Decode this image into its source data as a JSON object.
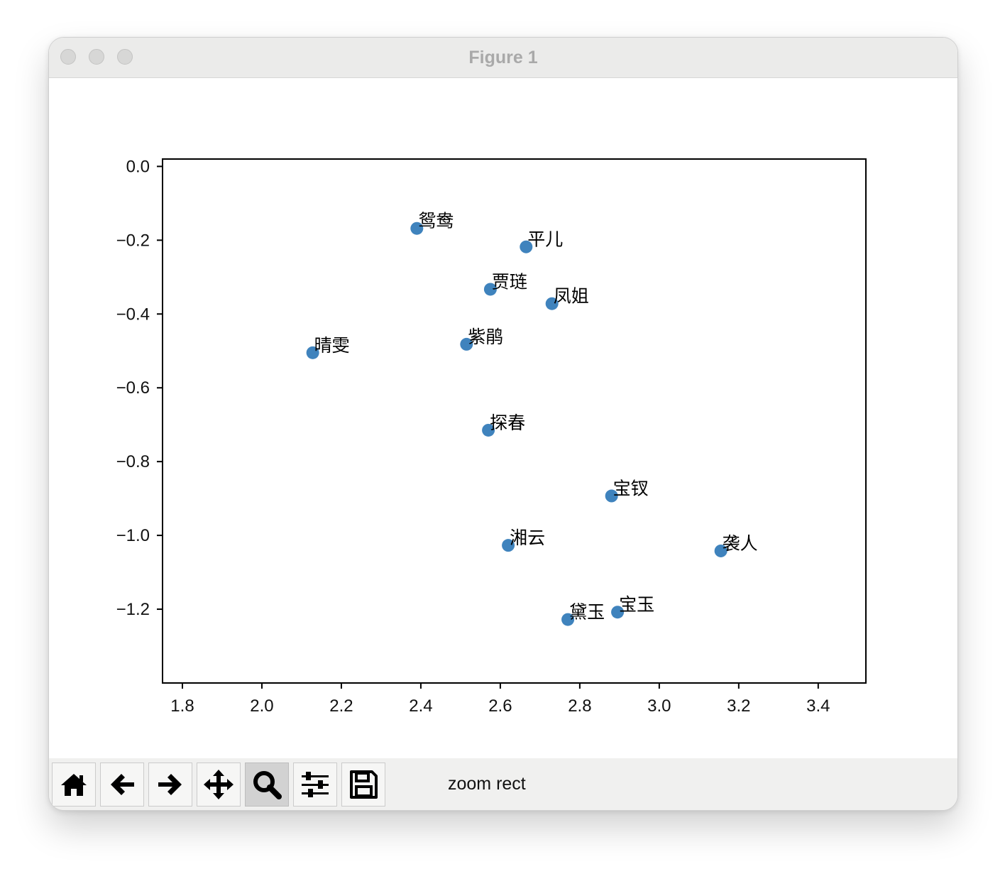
{
  "window": {
    "title": "Figure 1"
  },
  "toolbar": {
    "buttons": [
      {
        "name": "home-button",
        "icon": "home-icon"
      },
      {
        "name": "back-button",
        "icon": "arrow-left-icon"
      },
      {
        "name": "forward-button",
        "icon": "arrow-right-icon"
      },
      {
        "name": "pan-button",
        "icon": "move-icon"
      },
      {
        "name": "zoom-button",
        "icon": "magnifier-icon",
        "active": true
      },
      {
        "name": "configure-subplots-button",
        "icon": "sliders-icon"
      },
      {
        "name": "save-button",
        "icon": "floppy-disk-icon"
      }
    ],
    "status": "zoom rect"
  },
  "colors": {
    "marker": "#3f83bd",
    "axes": "#000000"
  },
  "chart_data": {
    "type": "scatter",
    "title": "",
    "xlabel": "",
    "ylabel": "",
    "xlim": [
      1.75,
      3.52
    ],
    "ylim": [
      -1.4,
      0.02
    ],
    "xticks": [
      "1.8",
      "2.0",
      "2.2",
      "2.4",
      "2.6",
      "2.8",
      "3.0",
      "3.2",
      "3.4"
    ],
    "yticks": [
      "0.0",
      "−0.2",
      "−0.4",
      "−0.6",
      "−0.8",
      "−1.0",
      "−1.2"
    ],
    "grid": false,
    "points": [
      {
        "label": "鸳鸯",
        "x": 2.39,
        "y": -0.168
      },
      {
        "label": "平儿",
        "x": 2.665,
        "y": -0.218
      },
      {
        "label": "贾琏",
        "x": 2.575,
        "y": -0.333
      },
      {
        "label": "凤姐",
        "x": 2.73,
        "y": -0.372
      },
      {
        "label": "紫鹃",
        "x": 2.515,
        "y": -0.482
      },
      {
        "label": "晴雯",
        "x": 2.128,
        "y": -0.505
      },
      {
        "label": "探春",
        "x": 2.57,
        "y": -0.715
      },
      {
        "label": "宝钗",
        "x": 2.88,
        "y": -0.893
      },
      {
        "label": "湘云",
        "x": 2.62,
        "y": -1.027
      },
      {
        "label": "袭人",
        "x": 3.155,
        "y": -1.042
      },
      {
        "label": "宝玉",
        "x": 2.895,
        "y": -1.208
      },
      {
        "label": "黛玉",
        "x": 2.77,
        "y": -1.228
      }
    ]
  }
}
